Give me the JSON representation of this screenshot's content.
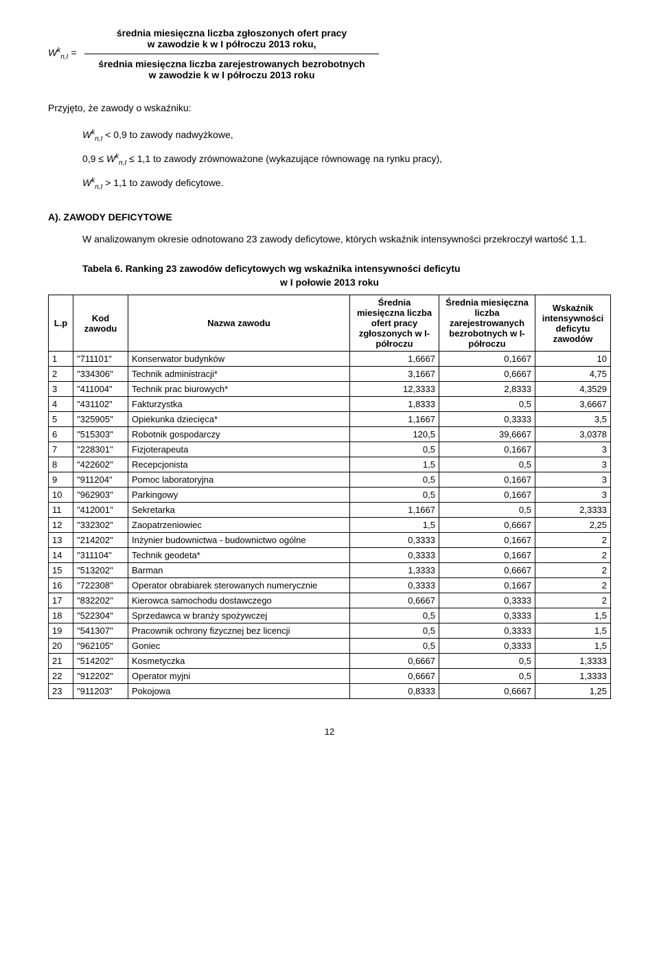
{
  "formula": {
    "lhs_symbol": "W",
    "lhs_sub": "n,I",
    "lhs_sup": "k",
    "equals": " =",
    "numerator_l1": "średnia miesięczna liczba zgłoszonych ofert pracy",
    "numerator_l2": "w zawodzie k w I półroczu 2013 roku,",
    "denominator_l1": "średnia miesięczna liczba zarejestrowanych bezrobotnych",
    "denominator_l2": "w zawodzie k w I półroczu 2013 roku"
  },
  "intro": "Przyjęto, że zawody o wskaźniku:",
  "rules": {
    "r1_prefix": "",
    "r1_sym": "W",
    "r1_sub": "n,I",
    "r1_sup": "k",
    "r1_text": "  < 0,9 to zawody nadwyżkowe,",
    "r2_prefix": "0,9 ≤ ",
    "r2_sym": "W",
    "r2_sub": "n,I",
    "r2_sup": "k",
    "r2_text": " ≤ 1,1 to zawody zrównoważone (wykazujące równowagę na rynku pracy),",
    "r3_prefix": "",
    "r3_sym": "W",
    "r3_sub": "n,I",
    "r3_sup": "k",
    "r3_text": "  > 1,1 to zawody deficytowe."
  },
  "section_a": "A). ZAWODY DEFICYTOWE",
  "section_a_para": "W analizowanym okresie odnotowano 23 zawody deficytowe, których wskaźnik intensywności przekroczył wartość 1,1.",
  "table_title": "Tabela 6. Ranking 23 zawodów deficytowych wg wskaźnika intensywności deficytu",
  "table_sub": "w I połowie 2013 roku",
  "headers": {
    "lp": "L.p",
    "kod": "Kod zawodu",
    "nazwa": "Nazwa zawodu",
    "col4": "Średnia miesięczna liczba ofert pracy zgłoszonych w I-półroczu",
    "col5": "Średnia miesięczna liczba zarejestrowanych bezrobotnych w I-półroczu",
    "col6": "Wskaźnik intensywności deficytu zawodów"
  },
  "rows": [
    {
      "i": "1",
      "k": "\"711101\"",
      "n": "Konserwator budynków",
      "a": "1,6667",
      "b": "0,1667",
      "c": "10"
    },
    {
      "i": "2",
      "k": "\"334306\"",
      "n": "Technik administracji*",
      "a": "3,1667",
      "b": "0,6667",
      "c": "4,75"
    },
    {
      "i": "3",
      "k": "\"411004\"",
      "n": "Technik prac biurowych*",
      "a": "12,3333",
      "b": "2,8333",
      "c": "4,3529"
    },
    {
      "i": "4",
      "k": "\"431102\"",
      "n": "Fakturzystka",
      "a": "1,8333",
      "b": "0,5",
      "c": "3,6667"
    },
    {
      "i": "5",
      "k": "\"325905\"",
      "n": "Opiekunka dziecięca*",
      "a": "1,1667",
      "b": "0,3333",
      "c": "3,5"
    },
    {
      "i": "6",
      "k": "\"515303\"",
      "n": "Robotnik gospodarczy",
      "a": "120,5",
      "b": "39,6667",
      "c": "3,0378"
    },
    {
      "i": "7",
      "k": "\"228301\"",
      "n": "Fizjoterapeuta",
      "a": "0,5",
      "b": "0,1667",
      "c": "3"
    },
    {
      "i": "8",
      "k": "\"422602\"",
      "n": "Recepcjonista",
      "a": "1,5",
      "b": "0,5",
      "c": "3"
    },
    {
      "i": "9",
      "k": "\"911204\"",
      "n": "Pomoc laboratoryjna",
      "a": "0,5",
      "b": "0,1667",
      "c": "3"
    },
    {
      "i": "10",
      "k": "\"962903\"",
      "n": "Parkingowy",
      "a": "0,5",
      "b": "0,1667",
      "c": "3"
    },
    {
      "i": "11",
      "k": "\"412001\"",
      "n": "Sekretarka",
      "a": "1,1667",
      "b": "0,5",
      "c": "2,3333"
    },
    {
      "i": "12",
      "k": "\"332302\"",
      "n": "Zaopatrzeniowiec",
      "a": "1,5",
      "b": "0,6667",
      "c": "2,25"
    },
    {
      "i": "13",
      "k": "\"214202\"",
      "n": "Inżynier budownictwa - budownictwo ogólne",
      "a": "0,3333",
      "b": "0,1667",
      "c": "2"
    },
    {
      "i": "14",
      "k": "\"311104\"",
      "n": "Technik geodeta*",
      "a": "0,3333",
      "b": "0,1667",
      "c": "2"
    },
    {
      "i": "15",
      "k": "\"513202\"",
      "n": "Barman",
      "a": "1,3333",
      "b": "0,6667",
      "c": "2"
    },
    {
      "i": "16",
      "k": "\"722308\"",
      "n": "Operator obrabiarek sterowanych numerycznie",
      "a": "0,3333",
      "b": "0,1667",
      "c": "2"
    },
    {
      "i": "17",
      "k": "\"832202\"",
      "n": "Kierowca samochodu dostawczego",
      "a": "0,6667",
      "b": "0,3333",
      "c": "2"
    },
    {
      "i": "18",
      "k": "\"522304\"",
      "n": "Sprzedawca w branży spożywczej",
      "a": "0,5",
      "b": "0,3333",
      "c": "1,5"
    },
    {
      "i": "19",
      "k": "\"541307\"",
      "n": "Pracownik ochrony fizycznej bez licencji",
      "a": "0,5",
      "b": "0,3333",
      "c": "1,5"
    },
    {
      "i": "20",
      "k": "\"962105\"",
      "n": "Goniec",
      "a": "0,5",
      "b": "0,3333",
      "c": "1,5"
    },
    {
      "i": "21",
      "k": "\"514202\"",
      "n": "Kosmetyczka",
      "a": "0,6667",
      "b": "0,5",
      "c": "1,3333"
    },
    {
      "i": "22",
      "k": "\"912202\"",
      "n": "Operator myjni",
      "a": "0,6667",
      "b": "0,5",
      "c": "1,3333"
    },
    {
      "i": "23",
      "k": "\"911203\"",
      "n": "Pokojowa",
      "a": "0,8333",
      "b": "0,6667",
      "c": "1,25"
    }
  ],
  "page_number": "12",
  "table_style": {
    "col_widths": [
      "36px",
      "80px",
      "auto",
      "130px",
      "140px",
      "110px"
    ]
  }
}
